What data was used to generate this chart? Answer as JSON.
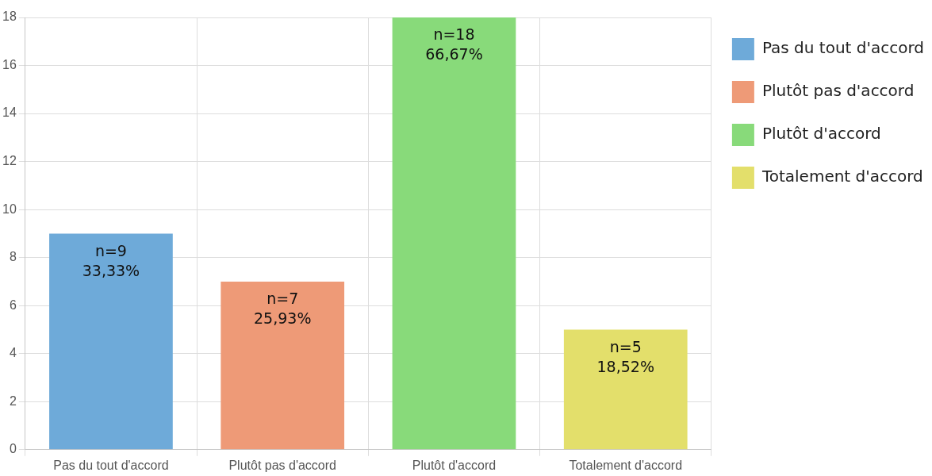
{
  "chart_data": {
    "type": "bar",
    "categories": [
      "Pas du tout d'accord",
      "Plutôt pas d'accord",
      "Plutôt d'accord",
      "Totalement d'accord"
    ],
    "series": [
      {
        "name": "Pas du tout d'accord",
        "color": "#6eaad9",
        "values": [
          9,
          null,
          null,
          null
        ],
        "value_labels": [
          "n=9\n33,33%",
          null,
          null,
          null
        ]
      },
      {
        "name": "Plutôt pas d'accord",
        "color": "#ee9a77",
        "values": [
          null,
          7,
          null,
          null
        ],
        "value_labels": [
          null,
          "n=7\n25,93%",
          null,
          null
        ]
      },
      {
        "name": "Plutôt d'accord",
        "color": "#88da7a",
        "values": [
          null,
          null,
          18,
          null
        ],
        "value_labels": [
          null,
          null,
          "n=18\n66,67%",
          null
        ]
      },
      {
        "name": "Totalement d'accord",
        "color": "#e3df6b",
        "values": [
          null,
          null,
          null,
          5
        ],
        "value_labels": [
          null,
          null,
          null,
          "n=5\n18,52%"
        ]
      }
    ],
    "ylim": [
      0,
      18
    ],
    "yticks": [
      0,
      2,
      4,
      6,
      8,
      10,
      12,
      14,
      16,
      18
    ],
    "grid": true,
    "legend": "right"
  }
}
